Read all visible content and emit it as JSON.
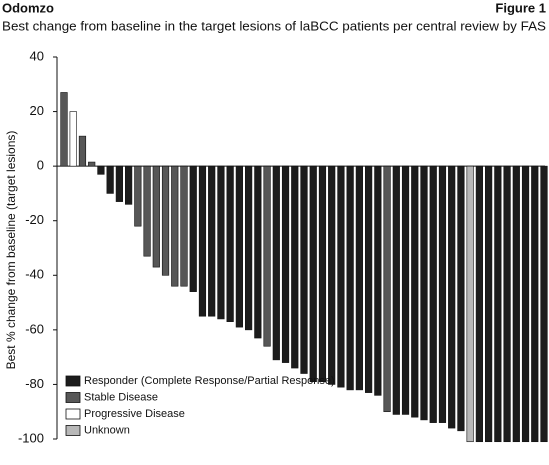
{
  "header": {
    "brand": "Odomzo",
    "figure": "Figure 1"
  },
  "chart_data": {
    "type": "waterfall",
    "title": "Best change from baseline in the target lesions of laBCC patients per central review by FAS",
    "y_label": "Best % change from baseline (target lesions)",
    "categories": [
      null,
      null,
      null,
      null,
      null,
      null,
      null,
      null,
      null,
      null,
      null,
      null,
      null,
      null,
      null,
      null,
      null,
      null,
      null,
      null,
      null,
      null,
      null,
      null,
      null,
      null,
      null,
      null,
      null,
      null,
      null,
      null,
      null,
      null,
      null,
      null,
      null,
      null,
      null,
      null,
      null,
      null,
      null,
      null,
      null,
      null,
      null,
      null,
      null,
      null,
      null,
      null,
      null
    ],
    "ylim": [
      -100,
      40
    ],
    "yticks": [
      -100,
      -80,
      -60,
      -40,
      -20,
      0,
      20,
      40
    ],
    "series": [
      {
        "name": "Responder (Complete Response/Partial Response)",
        "color": "#1c1c1c",
        "values": [
          null,
          null,
          null,
          null,
          -3,
          -10,
          -13,
          -14,
          null,
          null,
          null,
          null,
          null,
          null,
          -46,
          -55,
          -55,
          -56,
          -57,
          -59,
          -60,
          -63,
          null,
          -71,
          -72,
          -74,
          -76,
          -79,
          -79,
          -80,
          -81,
          -82,
          -82,
          -83,
          -84,
          null,
          -91,
          -91,
          -92,
          -93,
          -94,
          -94,
          -96,
          -97,
          null,
          -101,
          -101,
          -101,
          -101,
          -101,
          -101,
          -101,
          -101
        ]
      },
      {
        "name": "Stable Disease",
        "color": "#575757",
        "values": [
          27,
          null,
          11,
          1.5,
          null,
          null,
          null,
          null,
          -22,
          -33,
          -37,
          -40,
          -44,
          -44,
          null,
          null,
          null,
          null,
          null,
          null,
          null,
          null,
          -66,
          null,
          null,
          null,
          null,
          null,
          null,
          null,
          null,
          null,
          null,
          null,
          null,
          -90,
          null,
          null,
          null,
          null,
          null,
          null,
          null,
          null,
          null,
          null,
          null,
          null,
          null,
          null,
          null,
          null,
          null
        ]
      },
      {
        "name": "Progressive Disease",
        "color": "#ffffff",
        "values": [
          null,
          20,
          null,
          null,
          null,
          null,
          null,
          null,
          null,
          null,
          null,
          null,
          null,
          null,
          null,
          null,
          null,
          null,
          null,
          null,
          null,
          null,
          null,
          null,
          null,
          null,
          null,
          null,
          null,
          null,
          null,
          null,
          null,
          null,
          null,
          null,
          null,
          null,
          null,
          null,
          null,
          null,
          null,
          null,
          null,
          null,
          null,
          null,
          null,
          null,
          null,
          null,
          null
        ]
      },
      {
        "name": "Unknown",
        "color": "#b8b8b8",
        "values": [
          null,
          null,
          null,
          null,
          null,
          null,
          null,
          null,
          null,
          null,
          null,
          null,
          null,
          null,
          null,
          null,
          null,
          null,
          null,
          null,
          null,
          null,
          null,
          null,
          null,
          null,
          null,
          null,
          null,
          null,
          null,
          null,
          null,
          null,
          null,
          null,
          null,
          null,
          null,
          null,
          null,
          null,
          null,
          null,
          -101,
          null,
          null,
          null,
          null,
          null,
          null,
          null,
          null
        ]
      }
    ]
  }
}
